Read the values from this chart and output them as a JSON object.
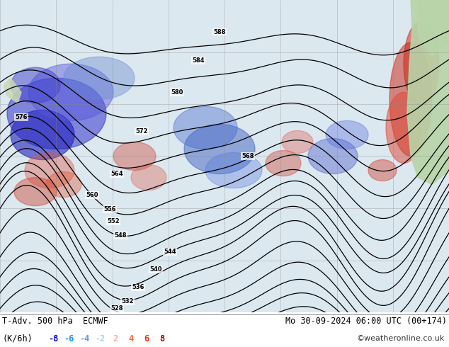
{
  "title_left": "T-Adv. 500 hPa  ECMWF",
  "title_right": "Mo 30-09-2024 06:00 UTC (00+174)",
  "colorbar_label": "(K/6h)",
  "colorbar_levels": [
    -8,
    -6,
    -4,
    -2,
    2,
    4,
    6,
    8
  ],
  "colorbar_colors": [
    "#0000cd",
    "#1e90ff",
    "#6495ed",
    "#add8e6",
    "#ffa07a",
    "#ff4500",
    "#dc143c",
    "#8b0000"
  ],
  "colorbar_label_colors": [
    "#0000cd",
    "#1e90ff",
    "#6495ed",
    "#add8e6",
    "#ffa07a",
    "#ff4500",
    "#dc143c",
    "#8b0000"
  ],
  "credit": "©weatheronline.co.uk",
  "background_color": "#f0f0f0",
  "map_background": "#e8e8e8",
  "land_color": "#c8e6c9",
  "grid_color": "#808080",
  "contour_color": "#000000",
  "warm_color": "#ff4444",
  "cold_color": "#4444ff",
  "figsize": [
    6.34,
    4.9
  ],
  "dpi": 100,
  "bottom_bar_height": 0.09,
  "title_fontsize": 8.5,
  "label_fontsize": 8.5,
  "credit_fontsize": 8,
  "colorbar_level_labels": [
    "-8",
    "-6",
    "-4",
    "-2",
    "2",
    "4",
    "6",
    "8"
  ],
  "neg_colors": [
    "#0000cd",
    "#1e90ff",
    "#6495ed",
    "#add8e6"
  ],
  "pos_colors": [
    "#ffa07a",
    "#ff6347",
    "#ff4500",
    "#8b0000"
  ]
}
